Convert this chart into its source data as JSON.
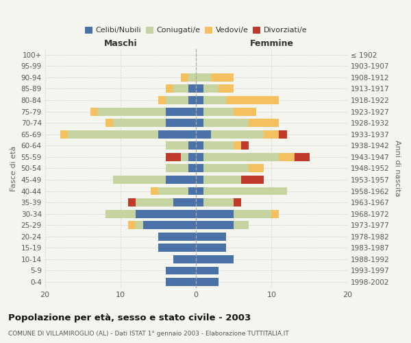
{
  "age_groups": [
    "0-4",
    "5-9",
    "10-14",
    "15-19",
    "20-24",
    "25-29",
    "30-34",
    "35-39",
    "40-44",
    "45-49",
    "50-54",
    "55-59",
    "60-64",
    "65-69",
    "70-74",
    "75-79",
    "80-84",
    "85-89",
    "90-94",
    "95-99",
    "100+"
  ],
  "birth_years": [
    "1998-2002",
    "1993-1997",
    "1988-1992",
    "1983-1987",
    "1978-1982",
    "1973-1977",
    "1968-1972",
    "1963-1967",
    "1958-1962",
    "1953-1957",
    "1948-1952",
    "1943-1947",
    "1938-1942",
    "1933-1937",
    "1928-1932",
    "1923-1927",
    "1918-1922",
    "1913-1917",
    "1908-1912",
    "1903-1907",
    "≤ 1902"
  ],
  "maschi": {
    "celibi": [
      4,
      4,
      3,
      5,
      5,
      7,
      8,
      3,
      1,
      4,
      1,
      1,
      1,
      5,
      4,
      4,
      1,
      1,
      0,
      0,
      0
    ],
    "coniugati": [
      0,
      0,
      0,
      0,
      0,
      1,
      4,
      5,
      4,
      7,
      3,
      1,
      3,
      12,
      7,
      9,
      3,
      2,
      1,
      0,
      0
    ],
    "vedovi": [
      0,
      0,
      0,
      0,
      0,
      1,
      0,
      0,
      1,
      0,
      0,
      0,
      0,
      1,
      1,
      1,
      1,
      1,
      1,
      0,
      0
    ],
    "divorziati": [
      0,
      0,
      0,
      0,
      0,
      0,
      0,
      1,
      0,
      0,
      0,
      2,
      0,
      0,
      0,
      0,
      0,
      0,
      0,
      0,
      0
    ]
  },
  "femmine": {
    "nubili": [
      3,
      3,
      5,
      4,
      4,
      5,
      5,
      1,
      1,
      1,
      1,
      1,
      1,
      2,
      1,
      1,
      1,
      1,
      0,
      0,
      0
    ],
    "coniugate": [
      0,
      0,
      0,
      0,
      0,
      2,
      5,
      4,
      11,
      5,
      6,
      10,
      4,
      7,
      6,
      4,
      3,
      2,
      2,
      0,
      0
    ],
    "vedove": [
      0,
      0,
      0,
      0,
      0,
      0,
      1,
      0,
      0,
      0,
      2,
      2,
      1,
      2,
      4,
      3,
      7,
      2,
      3,
      0,
      0
    ],
    "divorziate": [
      0,
      0,
      0,
      0,
      0,
      0,
      0,
      1,
      0,
      3,
      0,
      2,
      1,
      1,
      0,
      0,
      0,
      0,
      0,
      0,
      0
    ]
  },
  "colors": {
    "celibi": "#4a72a8",
    "coniugati": "#c5d4a0",
    "vedovi": "#f5c060",
    "divorziati": "#c0392b"
  },
  "xlim": 20,
  "title": "Popolazione per età, sesso e stato civile - 2003",
  "subtitle": "COMUNE DI VILLAMIROGLIO (AL) - Dati ISTAT 1° gennaio 2003 - Elaborazione TUTTITALIA.IT",
  "ylabel_left": "Fasce di età",
  "ylabel_right": "Anni di nascita",
  "xlabel_maschi": "Maschi",
  "xlabel_femmine": "Femmine",
  "bg_color": "#f5f5f0",
  "grid_color": "#d0d0c8"
}
